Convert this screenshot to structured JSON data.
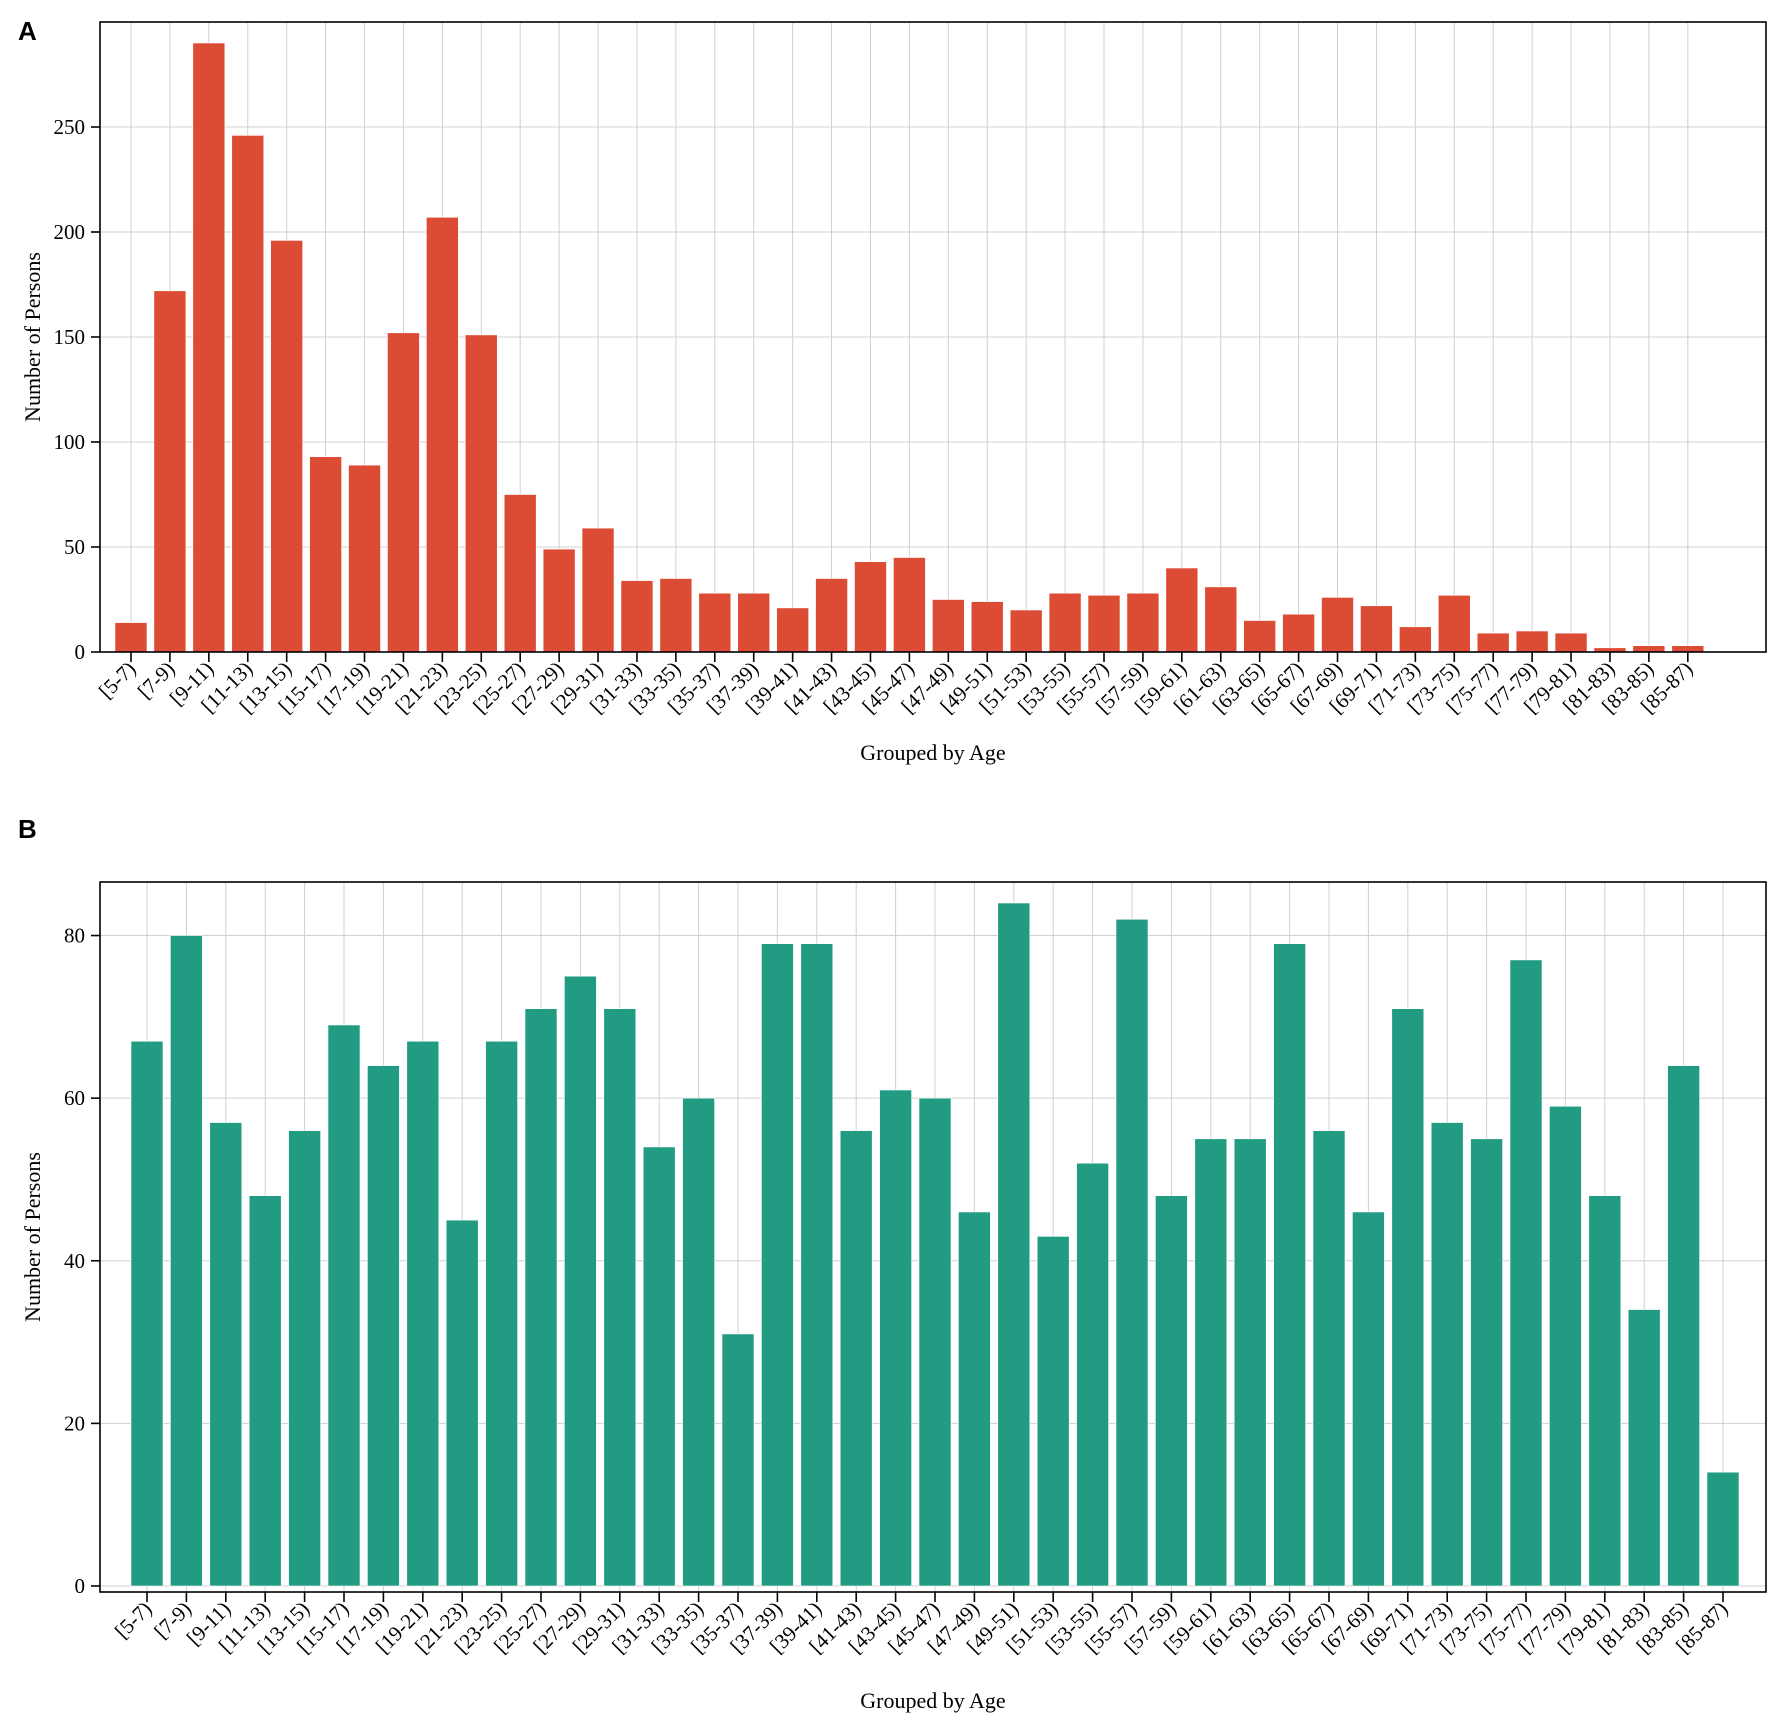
{
  "chart_data": [
    {
      "panel": "A",
      "type": "bar",
      "color": "#dc4b33",
      "xlabel": "Grouped by Age",
      "ylabel": "Number of Persons",
      "ylim": [
        0,
        290
      ],
      "yticks": [
        0,
        50,
        100,
        150,
        200,
        250
      ],
      "categories": [
        "[5-7)",
        "[7-9)",
        "[9-11)",
        "[11-13)",
        "[13-15)",
        "[15-17)",
        "[17-19)",
        "[19-21)",
        "[21-23)",
        "[23-25)",
        "[25-27)",
        "[27-29)",
        "[29-31)",
        "[31-33)",
        "[33-35)",
        "[35-37)",
        "[37-39)",
        "[39-41)",
        "[41-43)",
        "[43-45)",
        "[45-47)",
        "[47-49)",
        "[49-51)",
        "[51-53)",
        "[53-55)",
        "[55-57)",
        "[57-59)",
        "[59-61)",
        "[61-63)",
        "[63-65)",
        "[65-67)",
        "[67-69)",
        "[69-71)",
        "[71-73)",
        "[73-75)",
        "[75-77)",
        "[77-79)",
        "[79-81)",
        "[81-83)",
        "[83-85)",
        "[85-87)"
      ],
      "values": [
        14,
        172,
        290,
        246,
        196,
        93,
        89,
        152,
        207,
        151,
        75,
        49,
        59,
        34,
        35,
        28,
        28,
        21,
        35,
        43,
        45,
        25,
        24,
        20,
        28,
        27,
        28,
        40,
        31,
        15,
        18,
        26,
        22,
        12,
        27,
        9,
        10,
        9,
        2,
        3,
        3
      ]
    },
    {
      "panel": "B",
      "type": "bar",
      "color": "#219b82",
      "xlabel": "Grouped by Age",
      "ylabel": "Number of Persons",
      "ylim": [
        0,
        86
      ],
      "yticks": [
        0,
        20,
        40,
        60,
        80
      ],
      "categories": [
        "[5-7)",
        "[7-9)",
        "[9-11)",
        "[11-13)",
        "[13-15)",
        "[15-17)",
        "[17-19)",
        "[19-21)",
        "[21-23)",
        "[23-25)",
        "[25-27)",
        "[27-29)",
        "[29-31)",
        "[31-33)",
        "[33-35)",
        "[35-37)",
        "[37-39)",
        "[39-41)",
        "[41-43)",
        "[43-45)",
        "[45-47)",
        "[47-49)",
        "[49-51)",
        "[51-53)",
        "[53-55)",
        "[55-57)",
        "[57-59)",
        "[59-61)",
        "[61-63)",
        "[63-65)",
        "[65-67)",
        "[67-69)",
        "[69-71)",
        "[71-73)",
        "[73-75)",
        "[75-77)",
        "[77-79)",
        "[79-81)",
        "[81-83)",
        "[83-85)",
        "[85-87)"
      ],
      "values": [
        67,
        80,
        57,
        48,
        56,
        69,
        64,
        67,
        45,
        67,
        71,
        75,
        71,
        54,
        60,
        31,
        79,
        79,
        56,
        61,
        60,
        46,
        84,
        43,
        52,
        82,
        48,
        55,
        55,
        79,
        56,
        46,
        71,
        57,
        55,
        77,
        59,
        48,
        34,
        64,
        14
      ]
    }
  ]
}
